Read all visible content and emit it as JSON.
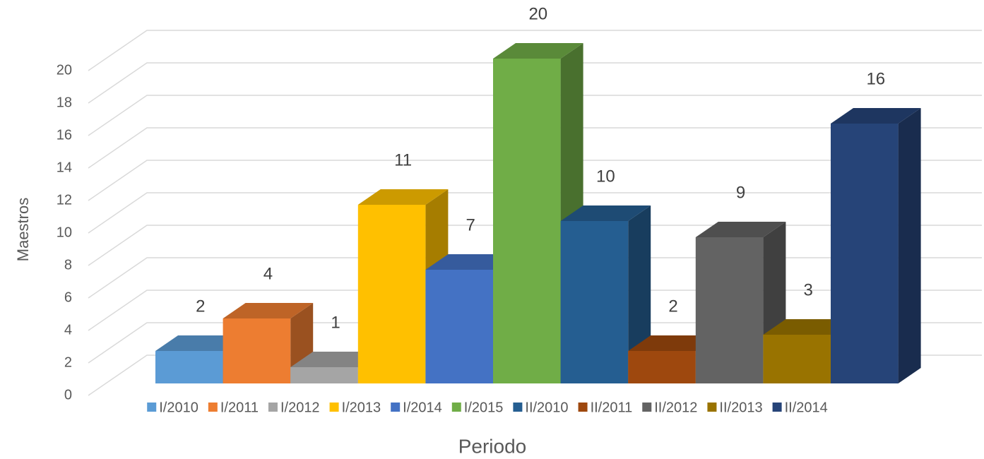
{
  "chart_data": {
    "type": "bar3d",
    "y_label": "Maestros",
    "x_label": "Periodo",
    "series": [
      {
        "name": "I/2010",
        "color": "#5b9bd5",
        "values": [
          2
        ]
      },
      {
        "name": "I/2011",
        "color": "#ed7d31",
        "values": [
          4
        ]
      },
      {
        "name": "I/2012",
        "color": "#a5a5a5",
        "values": [
          1
        ]
      },
      {
        "name": "I/2013",
        "color": "#ffc000",
        "values": [
          11
        ]
      },
      {
        "name": "I/2014",
        "color": "#4472c4",
        "values": [
          7
        ]
      },
      {
        "name": "I/2015",
        "color": "#70ad47",
        "values": [
          20
        ]
      },
      {
        "name": "II/2010",
        "color": "#255e91",
        "values": [
          10
        ]
      },
      {
        "name": "II/2011",
        "color": "#9e480e",
        "values": [
          2
        ]
      },
      {
        "name": "II/2012",
        "color": "#636363",
        "values": [
          9
        ]
      },
      {
        "name": "II/2013",
        "color": "#997300",
        "values": [
          3
        ]
      },
      {
        "name": "II/2014",
        "color": "#264478",
        "values": [
          16
        ]
      }
    ],
    "ylim": [
      0,
      20
    ],
    "yticks": [
      0,
      2,
      4,
      6,
      8,
      10,
      12,
      14,
      16,
      18,
      20
    ],
    "grid": true,
    "legend": "bottom"
  }
}
